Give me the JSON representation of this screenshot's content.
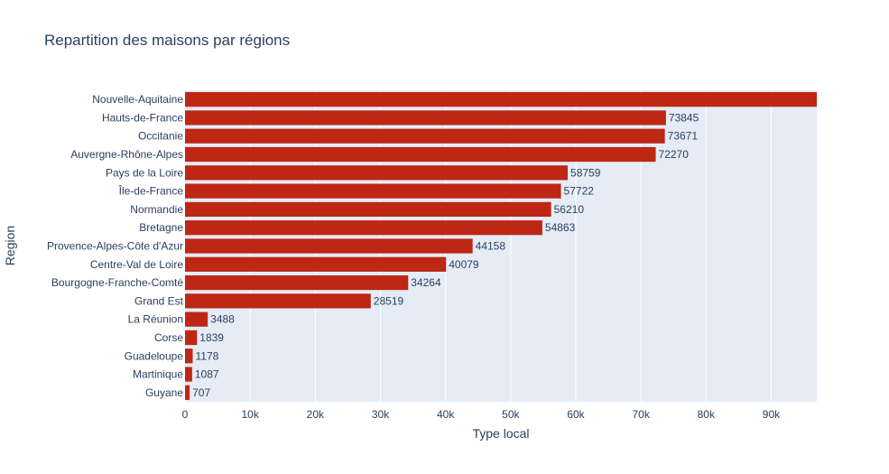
{
  "chart_data": {
    "type": "bar",
    "orientation": "horizontal",
    "title": "Repartition des maisons par régions",
    "xlabel": "Type local",
    "ylabel": "Region",
    "xlim": [
      0,
      97000
    ],
    "x_ticks": [
      0,
      10000,
      20000,
      30000,
      40000,
      50000,
      60000,
      70000,
      80000,
      90000
    ],
    "x_tick_labels": [
      "0",
      "10k",
      "20k",
      "30k",
      "40k",
      "50k",
      "60k",
      "70k",
      "80k",
      "90k"
    ],
    "grid": true,
    "bar_color": "#bd2714",
    "plot_bg": "#e5ecf6",
    "categories": [
      "Nouvelle-Aquitaine",
      "Hauts-de-France",
      "Occitanie",
      "Auvergne-Rhône-Alpes",
      "Pays de la Loire",
      "Île-de-France",
      "Normandie",
      "Bretagne",
      "Provence-Alpes-Côte d'Azur",
      "Centre-Val de Loire",
      "Bourgogne-Franche-Comté",
      "Grand Est",
      "La Réunion",
      "Corse",
      "Guadeloupe",
      "Martinique",
      "Guyane"
    ],
    "values": [
      97000,
      73845,
      73671,
      72270,
      58759,
      57722,
      56210,
      54863,
      44158,
      40079,
      34264,
      28519,
      3488,
      1839,
      1178,
      1087,
      707
    ],
    "value_labels": [
      "",
      "73845",
      "73671",
      "72270",
      "58759",
      "57722",
      "56210",
      "54863",
      "44158",
      "40079",
      "34264",
      "28519",
      "3488",
      "1839",
      "1178",
      "1087",
      "707"
    ]
  }
}
